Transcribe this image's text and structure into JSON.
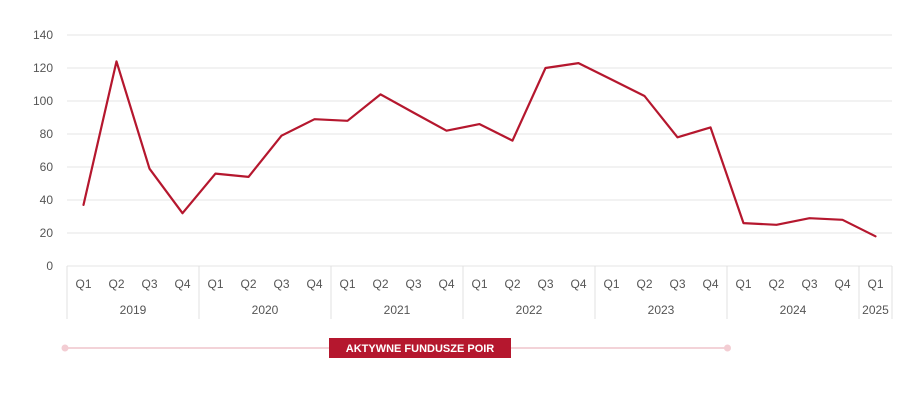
{
  "chart_data": {
    "type": "line",
    "title": "",
    "xlabel": "",
    "ylabel": "",
    "ylim": [
      0,
      140
    ],
    "yticks": [
      0,
      20,
      40,
      60,
      80,
      100,
      120,
      140
    ],
    "grid": true,
    "x": [
      {
        "quarter": "Q1",
        "year": "2019"
      },
      {
        "quarter": "Q2",
        "year": "2019"
      },
      {
        "quarter": "Q3",
        "year": "2019"
      },
      {
        "quarter": "Q4",
        "year": "2019"
      },
      {
        "quarter": "Q1",
        "year": "2020"
      },
      {
        "quarter": "Q2",
        "year": "2020"
      },
      {
        "quarter": "Q3",
        "year": "2020"
      },
      {
        "quarter": "Q4",
        "year": "2020"
      },
      {
        "quarter": "Q1",
        "year": "2021"
      },
      {
        "quarter": "Q2",
        "year": "2021"
      },
      {
        "quarter": "Q3",
        "year": "2021"
      },
      {
        "quarter": "Q4",
        "year": "2021"
      },
      {
        "quarter": "Q1",
        "year": "2022"
      },
      {
        "quarter": "Q2",
        "year": "2022"
      },
      {
        "quarter": "Q3",
        "year": "2022"
      },
      {
        "quarter": "Q4",
        "year": "2022"
      },
      {
        "quarter": "Q1",
        "year": "2023"
      },
      {
        "quarter": "Q2",
        "year": "2023"
      },
      {
        "quarter": "Q3",
        "year": "2023"
      },
      {
        "quarter": "Q4",
        "year": "2023"
      },
      {
        "quarter": "Q1",
        "year": "2024"
      },
      {
        "quarter": "Q2",
        "year": "2024"
      },
      {
        "quarter": "Q3",
        "year": "2024"
      },
      {
        "quarter": "Q4",
        "year": "2024"
      },
      {
        "quarter": "Q1",
        "year": "2025"
      }
    ],
    "years": [
      "2019",
      "2020",
      "2021",
      "2022",
      "2023",
      "2024",
      "2025"
    ],
    "series": [
      {
        "color": "#b5172e",
        "values": [
          37,
          124,
          59,
          32,
          56,
          54,
          79,
          89,
          88,
          104,
          93,
          82,
          86,
          76,
          120,
          123,
          113,
          103,
          78,
          84,
          26,
          25,
          29,
          28,
          18
        ]
      }
    ],
    "annotation": {
      "label": "AKTYWNE FUNDUSZE POIR",
      "from_index": 0,
      "to_index": 20,
      "color": "#b5172e"
    }
  }
}
